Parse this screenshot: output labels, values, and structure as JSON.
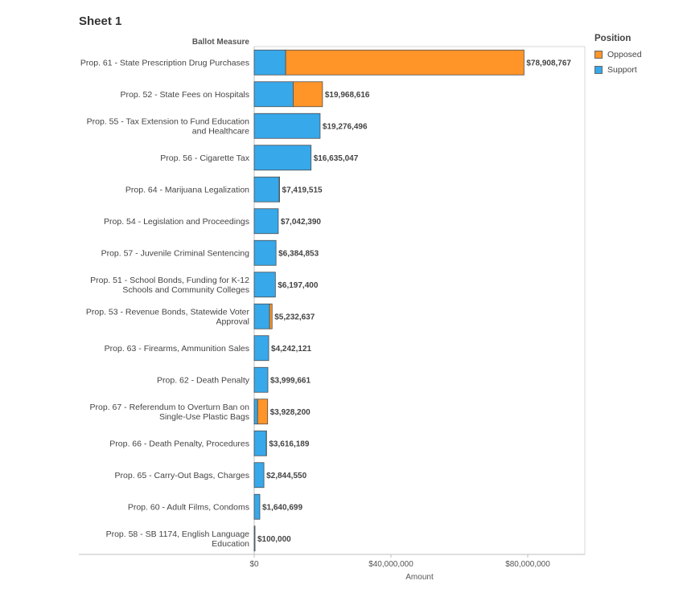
{
  "sheet": {
    "title": "Sheet 1"
  },
  "legend": {
    "title": "Position",
    "items": [
      {
        "label": "Opposed",
        "color": "#ff9528"
      },
      {
        "label": "Support",
        "color": "#37a8ea"
      }
    ]
  },
  "chart_data": {
    "type": "bar",
    "orientation": "horizontal",
    "stacked": true,
    "title": "",
    "row_header": "Ballot Measure",
    "xlabel": "Amount",
    "ylabel": "",
    "xlim": [
      0,
      100000000
    ],
    "xticks": [
      {
        "value": 0,
        "label": "$0"
      },
      {
        "value": 40000000,
        "label": "$40,000,000"
      },
      {
        "value": 80000000,
        "label": "$80,000,000"
      }
    ],
    "grid": false,
    "legend_position": "top-right",
    "categories": [
      [
        "Prop. 61 - State Prescription Drug Purchases"
      ],
      [
        "Prop. 52 - State Fees on Hospitals"
      ],
      [
        "Prop. 55 - Tax Extension to Fund Education",
        "and Healthcare"
      ],
      [
        "Prop. 56 - Cigarette Tax"
      ],
      [
        "Prop. 64 - Marijuana Legalization"
      ],
      [
        "Prop. 54 - Legislation and Proceedings"
      ],
      [
        "Prop. 57 - Juvenile Criminal Sentencing"
      ],
      [
        "Prop. 51 - School Bonds, Funding for K-12",
        "Schools and Community Colleges"
      ],
      [
        "Prop. 53 - Revenue Bonds, Statewide Voter",
        "Approval"
      ],
      [
        "Prop. 63 - Firearms, Ammunition Sales"
      ],
      [
        "Prop. 62 - Death Penalty"
      ],
      [
        "Prop. 67 - Referendum to Overturn Ban on",
        "Single-Use Plastic Bags"
      ],
      [
        "Prop. 66 - Death Penalty, Procedures"
      ],
      [
        "Prop. 65 - Carry-Out Bags, Charges"
      ],
      [
        "Prop. 60 - Adult Films, Condoms"
      ],
      [
        "Prop. 58 - SB 1174, English Language",
        "Education"
      ]
    ],
    "series": [
      {
        "name": "Support",
        "color": "#37a8ea",
        "values": [
          9200000,
          11400000,
          19276496,
          16635047,
          7300000,
          7042390,
          6384853,
          6197400,
          4500000,
          4242121,
          3999661,
          1000000,
          3550000,
          2844550,
          1640699,
          100000
        ]
      },
      {
        "name": "Opposed",
        "color": "#ff9528",
        "values": [
          69708767,
          8568616,
          0,
          0,
          119515,
          0,
          0,
          0,
          732637,
          0,
          0,
          2928200,
          66189,
          0,
          0,
          0
        ]
      }
    ],
    "totals": [
      78908767,
      19968616,
      19276496,
      16635047,
      7419515,
      7042390,
      6384853,
      6197400,
      5232637,
      4242121,
      3999661,
      3928200,
      3616189,
      2844550,
      1640699,
      100000
    ],
    "total_labels": [
      "$78,908,767",
      "$19,968,616",
      "$19,276,496",
      "$16,635,047",
      "$7,419,515",
      "$7,042,390",
      "$6,384,853",
      "$6,197,400",
      "$5,232,637",
      "$4,242,121",
      "$3,999,661",
      "$3,928,200",
      "$3,616,189",
      "$2,844,550",
      "$1,640,699",
      "$100,000"
    ]
  }
}
